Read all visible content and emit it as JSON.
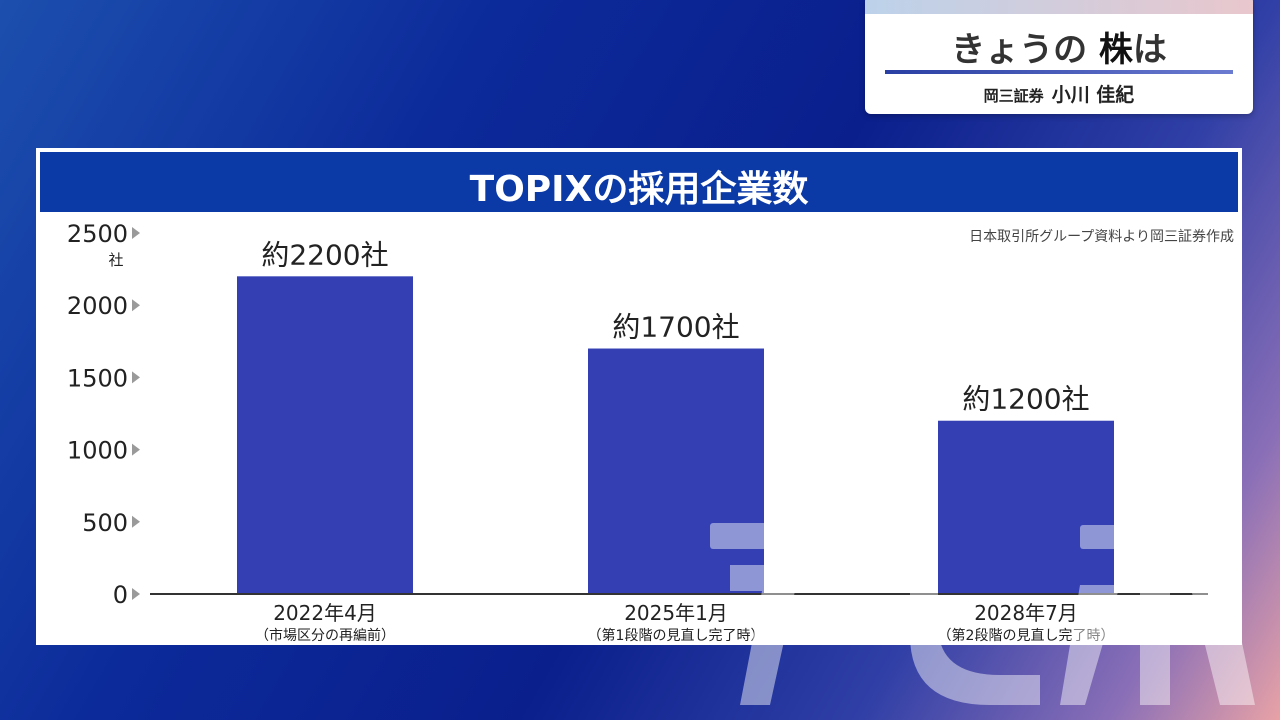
{
  "caption": {
    "title_prefix": "きょうの",
    "title_keyword": "株",
    "title_suffix": "は",
    "organization": "岡三証券",
    "person": "小川 佳紀"
  },
  "panel": {
    "title": "TOPIXの採用企業数",
    "source": "日本取引所グループ資料より岡三証券作成"
  },
  "chart_data": {
    "type": "bar",
    "title": "TOPIXの採用企業数",
    "ylabel": "社",
    "ylim": [
      0,
      2500
    ],
    "yticks": [
      "2500",
      "2000",
      "1500",
      "1000",
      "500",
      "0"
    ],
    "categories": [
      {
        "label": "2022年4月",
        "sublabel": "（市場区分の再編前）"
      },
      {
        "label": "2025年1月",
        "sublabel": "（第1段階の見直し完了時）"
      },
      {
        "label": "2028年7月",
        "sublabel": "（第2段階の見直し完了時）"
      }
    ],
    "values": [
      2200,
      1700,
      1200
    ],
    "value_labels": [
      "約2200社",
      "約1700社",
      "約1200社"
    ],
    "bar_color": "#333fb3",
    "grid": false
  },
  "colors": {
    "header_bg": "#0b3aa6",
    "bar": "#333fb3",
    "axis": "#333333",
    "tick_arrow": "#9a9a9a"
  }
}
